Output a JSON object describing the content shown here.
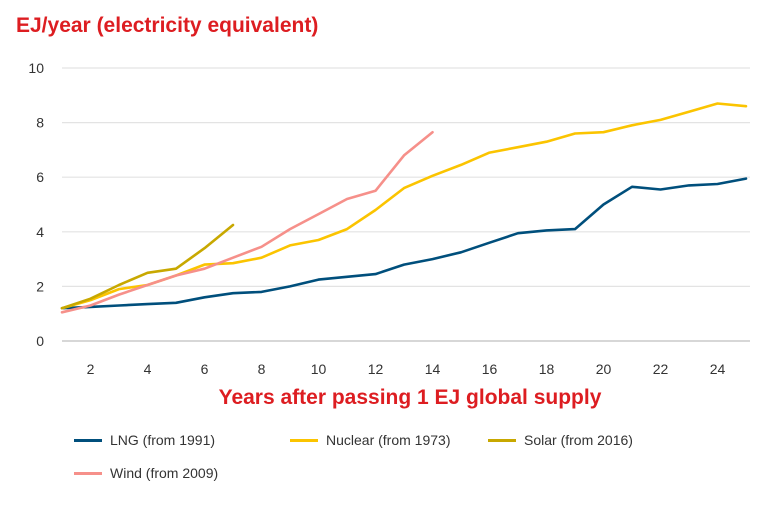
{
  "chart_data": {
    "type": "line",
    "ylabel": "EJ/year (electricity equivalent)",
    "xlabel": "Years after passing 1 EJ global supply",
    "xlim": [
      1,
      25
    ],
    "ylim": [
      0,
      10
    ],
    "xticks": [
      "2",
      "4",
      "6",
      "8",
      "10",
      "12",
      "14",
      "16",
      "18",
      "20",
      "22",
      "24"
    ],
    "yticks": [
      "0",
      "2",
      "4",
      "6",
      "8",
      "10"
    ],
    "grid": "horizontal",
    "legend_position": "bottom",
    "series": [
      {
        "name": "LNG (from 1991)",
        "color": "#004F7C",
        "x": [
          1,
          2,
          3,
          4,
          5,
          6,
          7,
          8,
          9,
          10,
          11,
          12,
          13,
          14,
          15,
          16,
          17,
          18,
          19,
          20,
          21,
          22,
          23,
          24,
          25
        ],
        "values": [
          1.2,
          1.25,
          1.3,
          1.35,
          1.4,
          1.6,
          1.75,
          1.8,
          2.0,
          2.25,
          2.35,
          2.45,
          2.8,
          3.0,
          3.25,
          3.6,
          3.95,
          4.05,
          4.1,
          5.0,
          5.65,
          5.55,
          5.7,
          5.75,
          5.95
        ]
      },
      {
        "name": "Nuclear (from 1973)",
        "color": "#FBC400",
        "x": [
          1,
          2,
          3,
          4,
          5,
          6,
          7,
          8,
          9,
          10,
          11,
          12,
          13,
          14,
          15,
          16,
          17,
          18,
          19,
          20,
          21,
          22,
          23,
          24,
          25
        ],
        "values": [
          1.2,
          1.5,
          1.9,
          2.05,
          2.4,
          2.8,
          2.85,
          3.05,
          3.5,
          3.7,
          4.1,
          4.8,
          5.6,
          6.05,
          6.45,
          6.9,
          7.1,
          7.3,
          7.6,
          7.65,
          7.9,
          8.1,
          8.4,
          8.7,
          8.6
        ]
      },
      {
        "name": "Solar (from 2016)",
        "color": "#C8A800",
        "x": [
          1,
          2,
          3,
          4,
          5,
          6,
          7
        ],
        "values": [
          1.2,
          1.55,
          2.05,
          2.5,
          2.65,
          3.4,
          4.25
        ]
      },
      {
        "name": "Wind (from 2009)",
        "color": "#F6908A",
        "x": [
          1,
          2,
          3,
          4,
          5,
          6,
          7,
          8,
          9,
          10,
          11,
          12,
          13,
          14
        ],
        "values": [
          1.05,
          1.3,
          1.7,
          2.05,
          2.4,
          2.65,
          3.05,
          3.45,
          4.1,
          4.65,
          5.2,
          5.5,
          6.8,
          7.65
        ]
      }
    ]
  }
}
